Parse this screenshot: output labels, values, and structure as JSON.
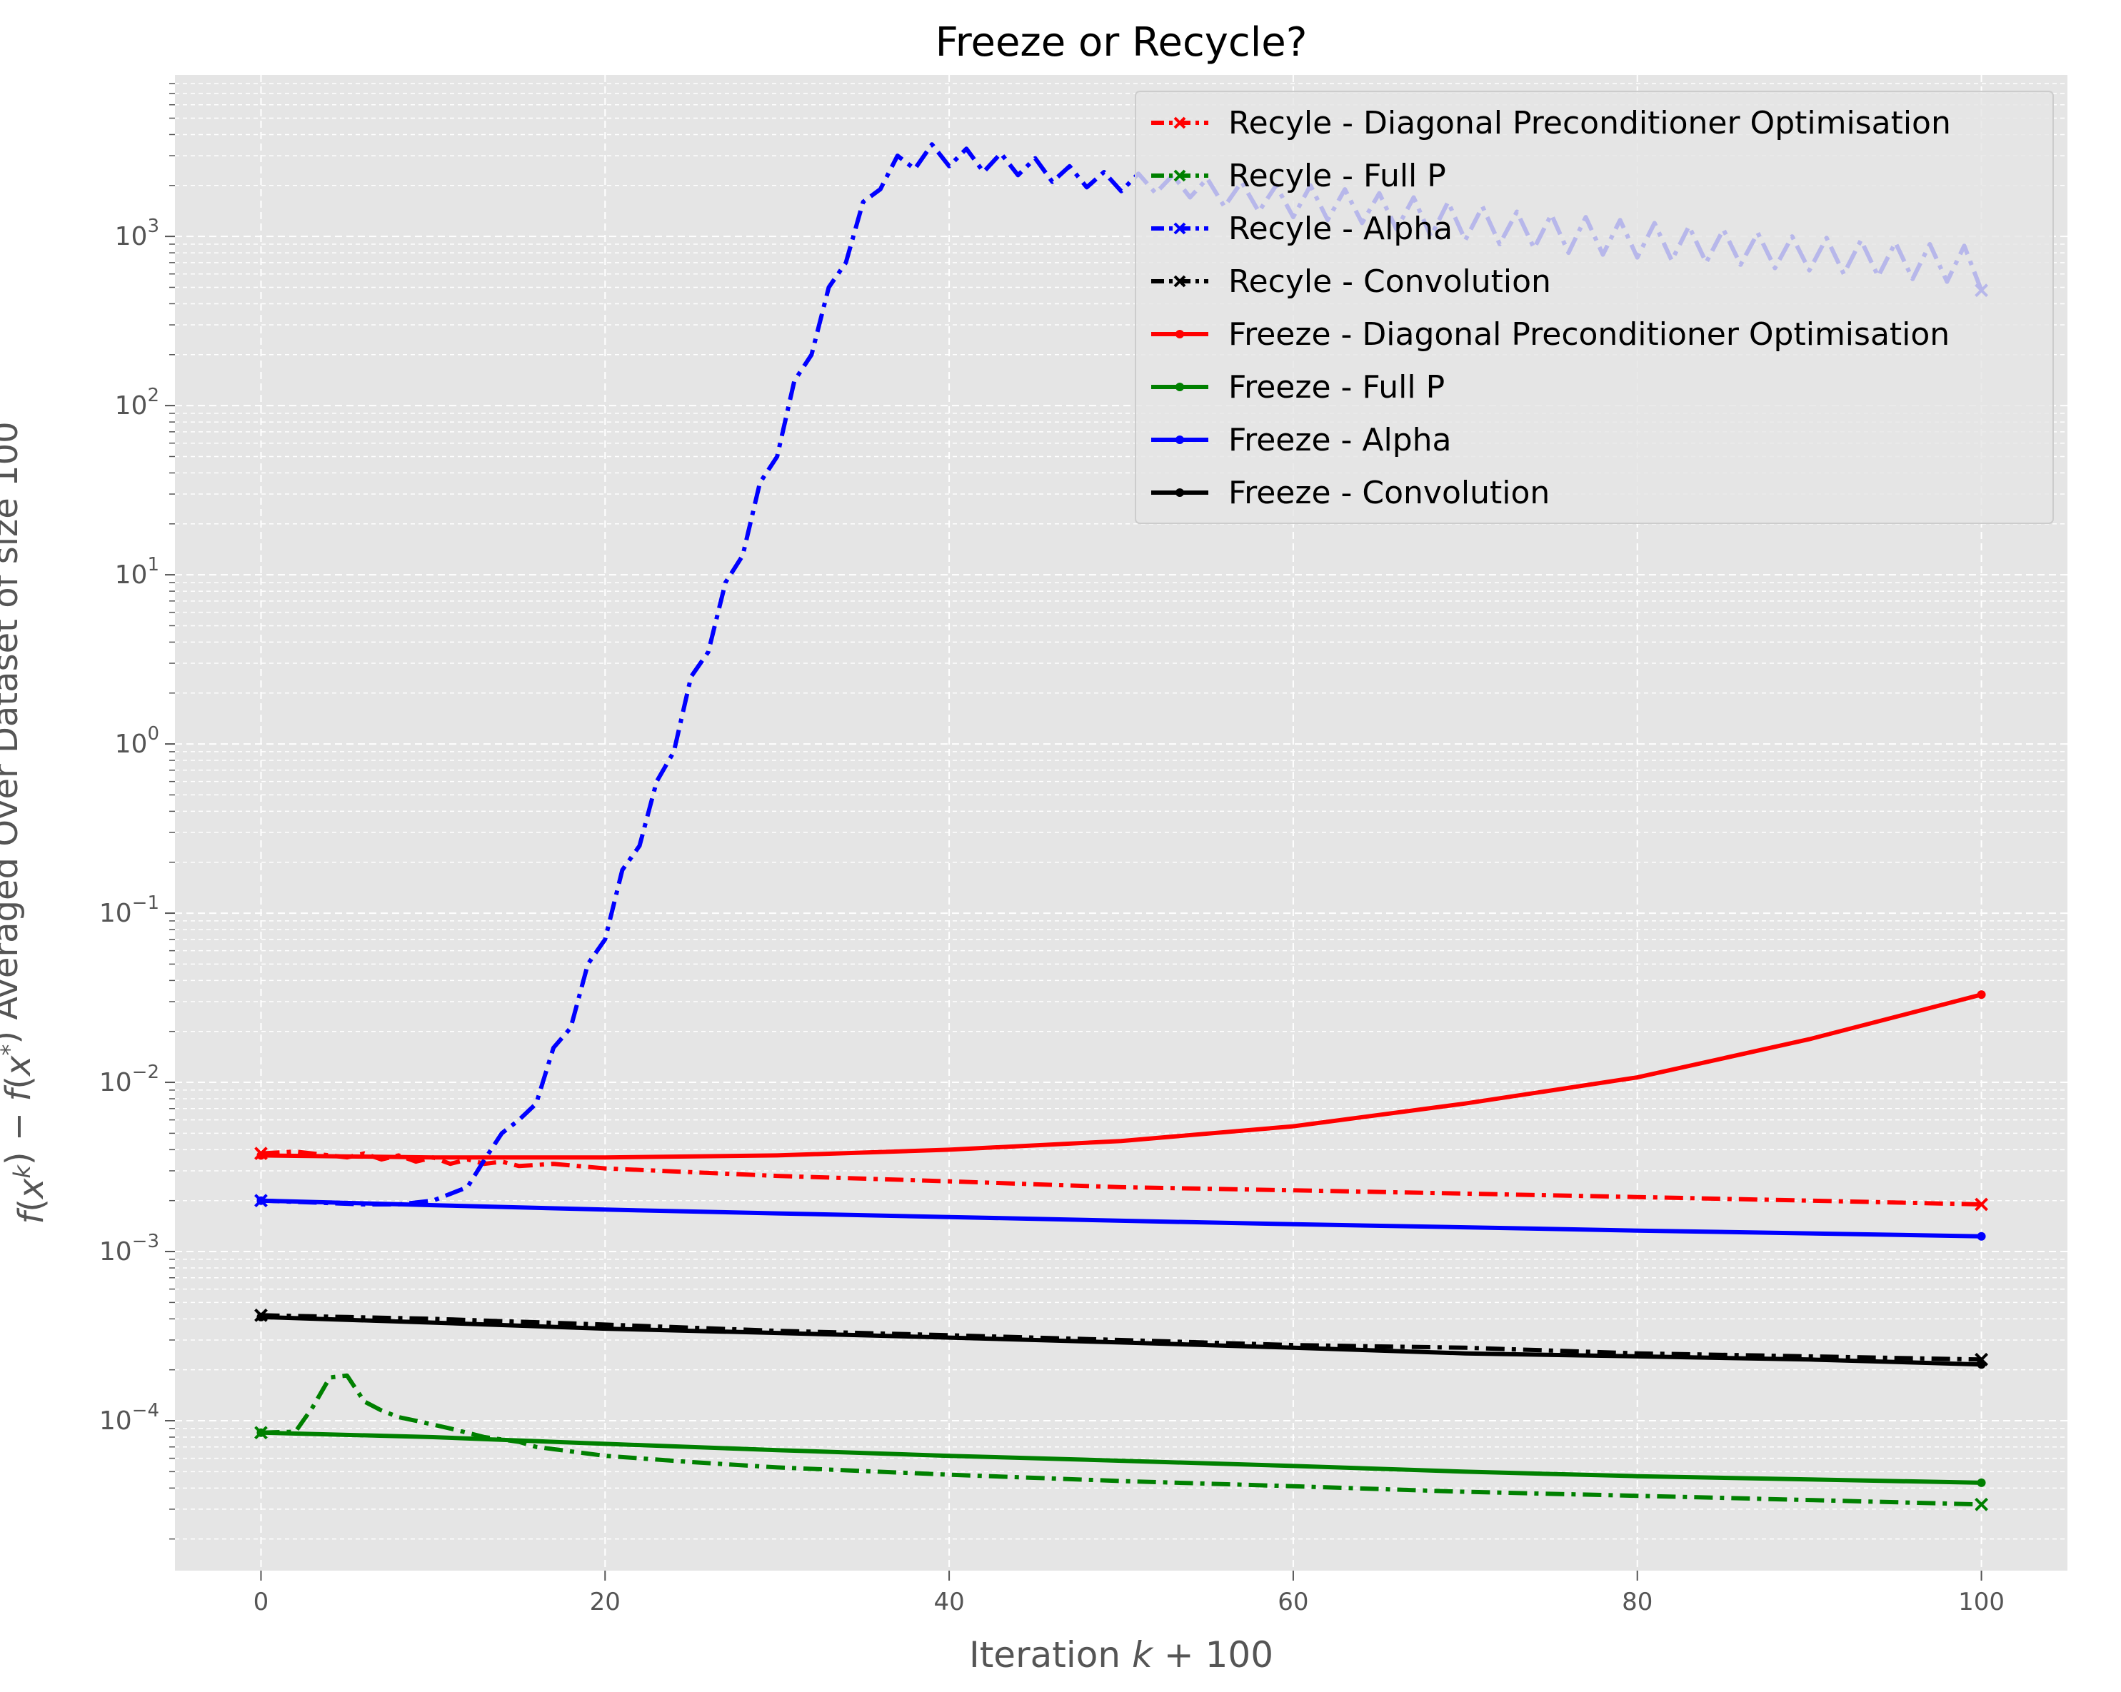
{
  "chart_data": {
    "type": "line",
    "title": "Freeze or Recycle?",
    "xlabel": "Iteration k + 100",
    "ylabel": "f(x^k) − f(x^*) Averaged Over Dataset of size 100",
    "xlim": [
      -5,
      105
    ],
    "ylim": [
      1.3e-05,
      9000
    ],
    "yscale": "log",
    "grid": true,
    "legend_position": "top-right",
    "x_ticks": [
      0,
      20,
      40,
      60,
      80,
      100
    ],
    "y_ticks": [
      {
        "value": 0.0001,
        "base": "10",
        "exp": "−4"
      },
      {
        "value": 0.001,
        "base": "10",
        "exp": "−3"
      },
      {
        "value": 0.01,
        "base": "10",
        "exp": "−2"
      },
      {
        "value": 0.1,
        "base": "10",
        "exp": "−1"
      },
      {
        "value": 1,
        "base": "10",
        "exp": "0"
      },
      {
        "value": 10,
        "base": "10",
        "exp": "1"
      },
      {
        "value": 100,
        "base": "10",
        "exp": "2"
      },
      {
        "value": 1000,
        "base": "10",
        "exp": "3"
      }
    ],
    "series": [
      {
        "name": "Recyle - Diagonal Preconditioner Optimisation",
        "color": "#ff0000",
        "style": "dashdot",
        "marker": "x",
        "points": [
          [
            0,
            0.0038
          ],
          [
            2,
            0.0039
          ],
          [
            4,
            0.0037
          ],
          [
            5,
            0.0036
          ],
          [
            6,
            0.0038
          ],
          [
            7,
            0.0035
          ],
          [
            8,
            0.0037
          ],
          [
            9,
            0.0034
          ],
          [
            10,
            0.0036
          ],
          [
            11,
            0.0033
          ],
          [
            12,
            0.0035
          ],
          [
            13,
            0.0033
          ],
          [
            14,
            0.0034
          ],
          [
            15,
            0.0032
          ],
          [
            17,
            0.0033
          ],
          [
            20,
            0.0031
          ],
          [
            30,
            0.0028
          ],
          [
            40,
            0.0026
          ],
          [
            50,
            0.0024
          ],
          [
            60,
            0.0023
          ],
          [
            70,
            0.0022
          ],
          [
            80,
            0.0021
          ],
          [
            90,
            0.002
          ],
          [
            100,
            0.0019
          ]
        ]
      },
      {
        "name": "Recyle - Full P",
        "color": "#008000",
        "style": "dashdot",
        "marker": "x",
        "points": [
          [
            0,
            8.5e-05
          ],
          [
            2,
            8.6e-05
          ],
          [
            3,
            0.00012
          ],
          [
            4,
            0.00018
          ],
          [
            5,
            0.000185
          ],
          [
            6,
            0.00013
          ],
          [
            7,
            0.000115
          ],
          [
            8,
            0.000105
          ],
          [
            9,
            0.0001
          ],
          [
            11,
            9e-05
          ],
          [
            13,
            8e-05
          ],
          [
            15,
            7.5e-05
          ],
          [
            16,
            7e-05
          ],
          [
            20,
            6.2e-05
          ],
          [
            25,
            5.7e-05
          ],
          [
            30,
            5.3e-05
          ],
          [
            40,
            4.8e-05
          ],
          [
            50,
            4.4e-05
          ],
          [
            60,
            4.1e-05
          ],
          [
            70,
            3.8e-05
          ],
          [
            80,
            3.6e-05
          ],
          [
            90,
            3.4e-05
          ],
          [
            100,
            3.2e-05
          ]
        ]
      },
      {
        "name": "Recyle - Alpha",
        "color": "#0000ff",
        "style": "dashdot",
        "marker": "x",
        "points": [
          [
            0,
            0.002
          ],
          [
            6,
            0.0019
          ],
          [
            8,
            0.0019
          ],
          [
            10,
            0.002
          ],
          [
            12,
            0.0024
          ],
          [
            13,
            0.0035
          ],
          [
            14,
            0.005
          ],
          [
            15,
            0.006
          ],
          [
            16,
            0.0075
          ],
          [
            17,
            0.016
          ],
          [
            18,
            0.021
          ],
          [
            19,
            0.05
          ],
          [
            20,
            0.07
          ],
          [
            21,
            0.18
          ],
          [
            22,
            0.25
          ],
          [
            23,
            0.6
          ],
          [
            24,
            0.9
          ],
          [
            25,
            2.5
          ],
          [
            26,
            3.5
          ],
          [
            27,
            9
          ],
          [
            28,
            13
          ],
          [
            29,
            35
          ],
          [
            30,
            50
          ],
          [
            31,
            140
          ],
          [
            32,
            200
          ],
          [
            33,
            500
          ],
          [
            34,
            700
          ],
          [
            35,
            1600
          ],
          [
            36,
            1900
          ],
          [
            37,
            3000
          ],
          [
            38,
            2500
          ],
          [
            39,
            3500
          ],
          [
            40,
            2600
          ],
          [
            41,
            3300
          ],
          [
            42,
            2400
          ],
          [
            43,
            3100
          ],
          [
            44,
            2300
          ],
          [
            45,
            2900
          ],
          [
            46,
            2100
          ],
          [
            47,
            2600
          ],
          [
            48,
            1950
          ],
          [
            49,
            2400
          ],
          [
            50,
            1850
          ],
          [
            51,
            2350
          ],
          [
            52,
            1800
          ],
          [
            53,
            2300
          ],
          [
            54,
            1700
          ],
          [
            55,
            2200
          ],
          [
            56,
            1500
          ],
          [
            57,
            2100
          ],
          [
            58,
            1400
          ],
          [
            59,
            2000
          ],
          [
            60,
            1300
          ],
          [
            61,
            2000
          ],
          [
            62,
            1250
          ],
          [
            63,
            1900
          ],
          [
            64,
            1200
          ],
          [
            65,
            1800
          ],
          [
            66,
            1100
          ],
          [
            67,
            1700
          ],
          [
            68,
            1000
          ],
          [
            69,
            1600
          ],
          [
            70,
            950
          ],
          [
            71,
            1500
          ],
          [
            72,
            900
          ],
          [
            73,
            1400
          ],
          [
            74,
            850
          ],
          [
            75,
            1350
          ],
          [
            76,
            800
          ],
          [
            77,
            1300
          ],
          [
            78,
            780
          ],
          [
            79,
            1250
          ],
          [
            80,
            750
          ],
          [
            81,
            1200
          ],
          [
            82,
            720
          ],
          [
            83,
            1150
          ],
          [
            84,
            700
          ],
          [
            85,
            1100
          ],
          [
            86,
            680
          ],
          [
            87,
            1050
          ],
          [
            88,
            650
          ],
          [
            89,
            1000
          ],
          [
            90,
            630
          ],
          [
            91,
            980
          ],
          [
            92,
            600
          ],
          [
            93,
            950
          ],
          [
            94,
            580
          ],
          [
            95,
            920
          ],
          [
            96,
            560
          ],
          [
            97,
            900
          ],
          [
            98,
            540
          ],
          [
            99,
            880
          ],
          [
            100,
            480
          ]
        ]
      },
      {
        "name": "Recyle - Convolution",
        "color": "#000000",
        "style": "dashdot",
        "marker": "x",
        "points": [
          [
            0,
            0.00042
          ],
          [
            5,
            0.00041
          ],
          [
            10,
            0.0004
          ],
          [
            20,
            0.00037
          ],
          [
            30,
            0.00034
          ],
          [
            40,
            0.00032
          ],
          [
            50,
            0.0003
          ],
          [
            60,
            0.00028
          ],
          [
            70,
            0.00027
          ],
          [
            80,
            0.00025
          ],
          [
            90,
            0.00024
          ],
          [
            100,
            0.00023
          ]
        ]
      },
      {
        "name": "Freeze - Diagonal Preconditioner Optimisation",
        "color": "#ff0000",
        "style": "solid",
        "marker": "dot",
        "points": [
          [
            0,
            0.0037
          ],
          [
            10,
            0.0036
          ],
          [
            20,
            0.0036
          ],
          [
            30,
            0.0037
          ],
          [
            40,
            0.004
          ],
          [
            50,
            0.0045
          ],
          [
            60,
            0.0055
          ],
          [
            70,
            0.0075
          ],
          [
            80,
            0.0107
          ],
          [
            90,
            0.018
          ],
          [
            100,
            0.033
          ]
        ]
      },
      {
        "name": "Freeze - Full P",
        "color": "#008000",
        "style": "solid",
        "marker": "dot",
        "points": [
          [
            0,
            8.5e-05
          ],
          [
            10,
            8e-05
          ],
          [
            20,
            7.3e-05
          ],
          [
            30,
            6.7e-05
          ],
          [
            40,
            6.2e-05
          ],
          [
            50,
            5.8e-05
          ],
          [
            60,
            5.4e-05
          ],
          [
            70,
            5e-05
          ],
          [
            80,
            4.7e-05
          ],
          [
            90,
            4.5e-05
          ],
          [
            100,
            4.3e-05
          ]
        ]
      },
      {
        "name": "Freeze - Alpha",
        "color": "#0000ff",
        "style": "solid",
        "marker": "dot",
        "points": [
          [
            0,
            0.002
          ],
          [
            10,
            0.00188
          ],
          [
            20,
            0.00177
          ],
          [
            30,
            0.00168
          ],
          [
            40,
            0.0016
          ],
          [
            50,
            0.00152
          ],
          [
            60,
            0.00145
          ],
          [
            70,
            0.00139
          ],
          [
            80,
            0.00133
          ],
          [
            90,
            0.00128
          ],
          [
            100,
            0.00123
          ]
        ]
      },
      {
        "name": "Freeze - Convolution",
        "color": "#000000",
        "style": "solid",
        "marker": "dot",
        "points": [
          [
            0,
            0.00041
          ],
          [
            10,
            0.00038
          ],
          [
            20,
            0.00035
          ],
          [
            30,
            0.00033
          ],
          [
            40,
            0.00031
          ],
          [
            50,
            0.00029
          ],
          [
            60,
            0.00027
          ],
          [
            70,
            0.00025
          ],
          [
            80,
            0.00024
          ],
          [
            90,
            0.00023
          ],
          [
            100,
            0.000215
          ]
        ]
      }
    ]
  }
}
